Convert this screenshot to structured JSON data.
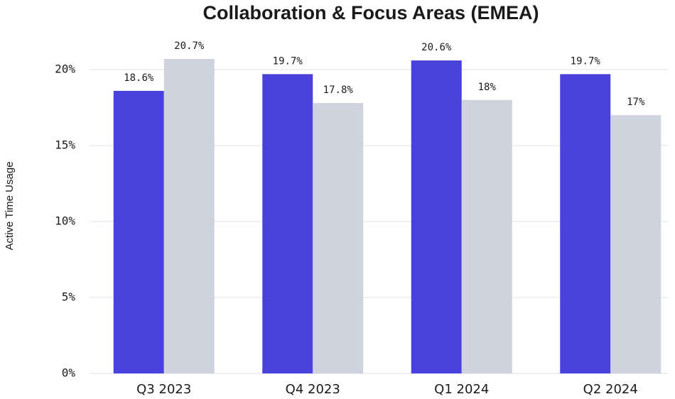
{
  "chart_data": {
    "type": "bar",
    "title": "Collaboration & Focus Areas (EMEA)",
    "y_label": "Active Time Usage",
    "categories": [
      "Q3 2023",
      "Q4 2023",
      "Q1 2024",
      "Q2 2024"
    ],
    "series": [
      {
        "color": "#4a40db",
        "values": [
          18.6,
          19.7,
          20.6,
          19.7
        ],
        "value_labels": [
          "18.6%",
          "19.7%",
          "20.6%",
          "19.7%"
        ]
      },
      {
        "color": "#cfd3de",
        "values": [
          20.7,
          17.8,
          18,
          17
        ],
        "value_labels": [
          "20.7%",
          "17.8%",
          "18%",
          "17%"
        ]
      }
    ],
    "ylim": [
      0,
      22
    ],
    "yticks": [
      {
        "value": 0,
        "label": "0%"
      },
      {
        "value": 5,
        "label": "5%"
      },
      {
        "value": 10,
        "label": "10%"
      },
      {
        "value": 15,
        "label": "15%"
      },
      {
        "value": 20,
        "label": "20%"
      }
    ],
    "grid": true
  }
}
